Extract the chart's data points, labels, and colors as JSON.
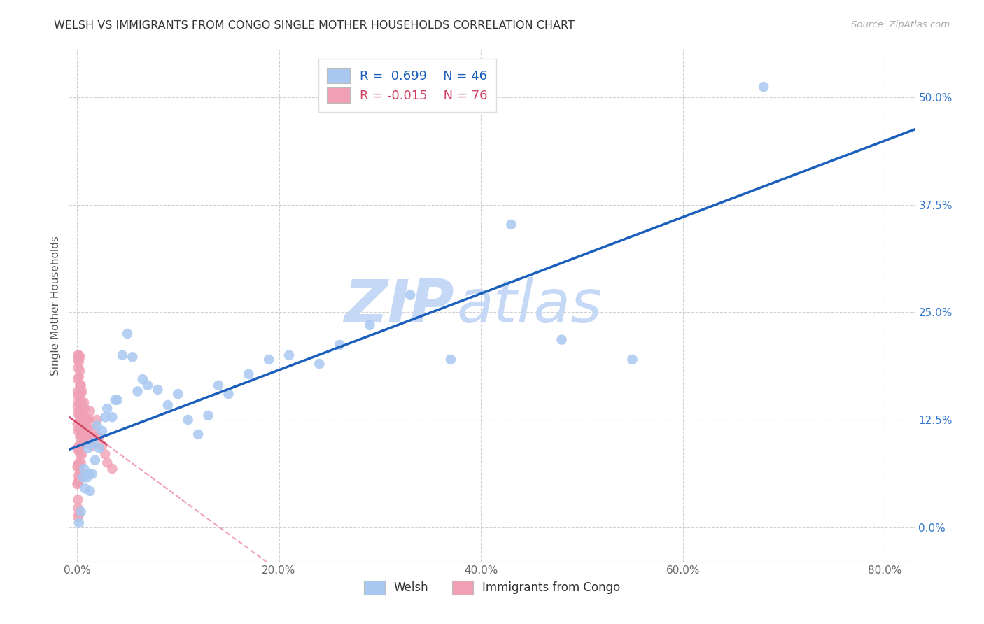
{
  "title": "WELSH VS IMMIGRANTS FROM CONGO SINGLE MOTHER HOUSEHOLDS CORRELATION CHART",
  "source": "Source: ZipAtlas.com",
  "ylabel": "Single Mother Households",
  "xlabel_tick_vals": [
    0.0,
    0.2,
    0.4,
    0.6,
    0.8
  ],
  "xlabel_ticks": [
    "0.0%",
    "20.0%",
    "40.0%",
    "60.0%",
    "80.0%"
  ],
  "ylabel_tick_vals": [
    0.0,
    0.125,
    0.25,
    0.375,
    0.5
  ],
  "ylabel_ticks": [
    "0.0%",
    "12.5%",
    "25.0%",
    "37.5%",
    "50.0%"
  ],
  "xlim": [
    -0.008,
    0.83
  ],
  "ylim": [
    -0.04,
    0.555
  ],
  "blue_r": 0.699,
  "blue_n": 46,
  "pink_r": -0.015,
  "pink_n": 76,
  "blue_scatter_color": "#A8C8F0",
  "pink_scatter_color": "#F0A0B5",
  "blue_line_color": "#1A5FBB",
  "pink_line_color": "#D04060",
  "pink_line_dash_color": "#F0A0B5",
  "watermark_zip_color": "#C5D8F5",
  "watermark_atlas_color": "#C5D8F5",
  "legend_label_blue": "Welsh",
  "legend_label_pink": "Immigrants from Congo",
  "welsh_x": [
    0.002,
    0.004,
    0.006,
    0.007,
    0.008,
    0.01,
    0.011,
    0.012,
    0.013,
    0.015,
    0.016,
    0.018,
    0.02,
    0.022,
    0.025,
    0.028,
    0.03,
    0.035,
    0.038,
    0.04,
    0.045,
    0.05,
    0.055,
    0.06,
    0.065,
    0.07,
    0.08,
    0.09,
    0.1,
    0.11,
    0.12,
    0.13,
    0.14,
    0.15,
    0.17,
    0.19,
    0.21,
    0.24,
    0.26,
    0.29,
    0.33,
    0.37,
    0.43,
    0.48,
    0.55,
    0.68
  ],
  "welsh_y": [
    0.005,
    0.018,
    0.058,
    0.068,
    0.045,
    0.058,
    0.092,
    0.062,
    0.042,
    0.062,
    0.098,
    0.078,
    0.118,
    0.092,
    0.112,
    0.128,
    0.138,
    0.128,
    0.148,
    0.148,
    0.2,
    0.225,
    0.198,
    0.158,
    0.172,
    0.165,
    0.16,
    0.142,
    0.155,
    0.125,
    0.108,
    0.13,
    0.165,
    0.155,
    0.178,
    0.195,
    0.2,
    0.19,
    0.212,
    0.235,
    0.27,
    0.195,
    0.352,
    0.218,
    0.195,
    0.512
  ],
  "congo_x": [
    0.0003,
    0.0005,
    0.0005,
    0.0007,
    0.0008,
    0.0008,
    0.001,
    0.001,
    0.001,
    0.001,
    0.001,
    0.001,
    0.001,
    0.001,
    0.001,
    0.001,
    0.0015,
    0.0015,
    0.002,
    0.002,
    0.002,
    0.002,
    0.002,
    0.002,
    0.002,
    0.002,
    0.002,
    0.0025,
    0.003,
    0.003,
    0.003,
    0.003,
    0.003,
    0.003,
    0.003,
    0.003,
    0.0035,
    0.004,
    0.004,
    0.004,
    0.004,
    0.004,
    0.004,
    0.005,
    0.005,
    0.005,
    0.005,
    0.005,
    0.006,
    0.006,
    0.006,
    0.007,
    0.007,
    0.007,
    0.008,
    0.008,
    0.009,
    0.01,
    0.01,
    0.011,
    0.012,
    0.013,
    0.014,
    0.015,
    0.016,
    0.018,
    0.02,
    0.022,
    0.025,
    0.028,
    0.03,
    0.035,
    0.001,
    0.001,
    0.001,
    0.002
  ],
  "congo_y": [
    0.05,
    0.07,
    0.12,
    0.14,
    0.09,
    0.158,
    0.052,
    0.072,
    0.092,
    0.112,
    0.132,
    0.152,
    0.172,
    0.185,
    0.195,
    0.2,
    0.06,
    0.145,
    0.055,
    0.075,
    0.095,
    0.115,
    0.135,
    0.155,
    0.175,
    0.192,
    0.2,
    0.13,
    0.065,
    0.085,
    0.105,
    0.125,
    0.145,
    0.165,
    0.182,
    0.198,
    0.115,
    0.075,
    0.095,
    0.115,
    0.135,
    0.155,
    0.165,
    0.085,
    0.105,
    0.125,
    0.145,
    0.158,
    0.098,
    0.118,
    0.138,
    0.108,
    0.128,
    0.145,
    0.118,
    0.138,
    0.125,
    0.105,
    0.125,
    0.115,
    0.125,
    0.135,
    0.105,
    0.095,
    0.105,
    0.115,
    0.125,
    0.105,
    0.095,
    0.085,
    0.075,
    0.068,
    0.012,
    0.022,
    0.032,
    0.015
  ]
}
